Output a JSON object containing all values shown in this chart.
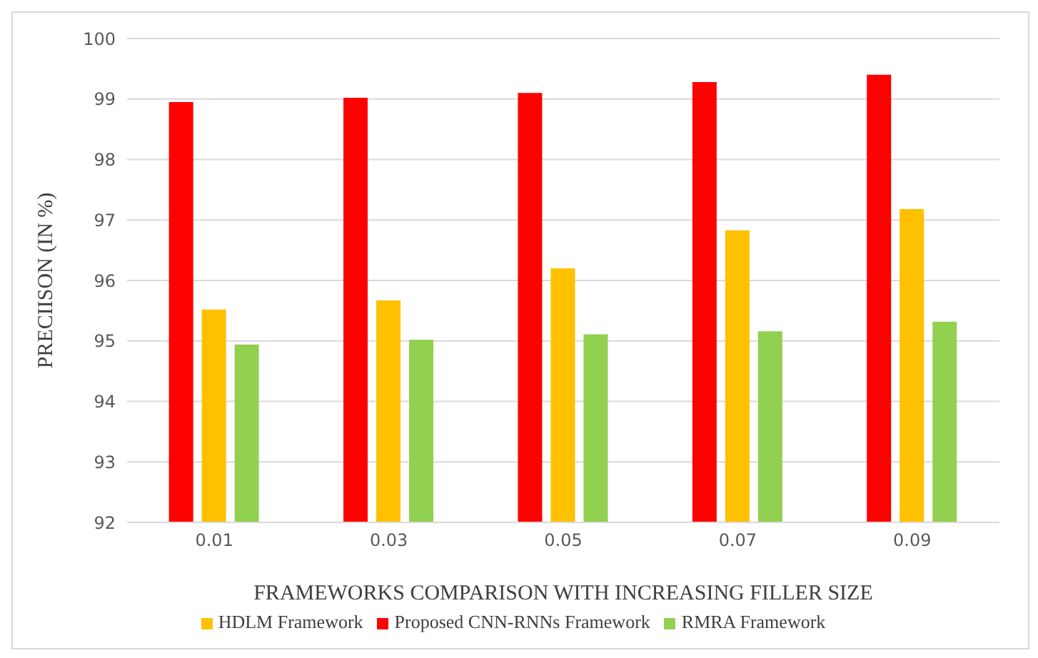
{
  "chart_data": {
    "type": "bar",
    "xlabel": "FRAMEWORKS COMPARISON WITH INCREASING FILLER SIZE",
    "ylabel": "PRECIISON (IN %)",
    "categories": [
      "0.01",
      "0.03",
      "0.05",
      "0.07",
      "0.09"
    ],
    "series": [
      {
        "name": "Proposed CNN-RNNs Framework",
        "color": "#ff0000",
        "values": [
          98.95,
          99.02,
          99.1,
          99.28,
          99.4
        ]
      },
      {
        "name": "HDLM Framework",
        "color": "#ffc000",
        "values": [
          95.52,
          95.67,
          96.2,
          96.83,
          97.18
        ]
      },
      {
        "name": "RMRA Framework",
        "color": "#92d050",
        "values": [
          94.94,
          95.02,
          95.11,
          95.16,
          95.32
        ]
      }
    ],
    "ylim": [
      92,
      100
    ],
    "yticks": [
      92,
      93,
      94,
      95,
      96,
      97,
      98,
      99,
      100
    ],
    "grid": "y",
    "legend": "bottom"
  }
}
